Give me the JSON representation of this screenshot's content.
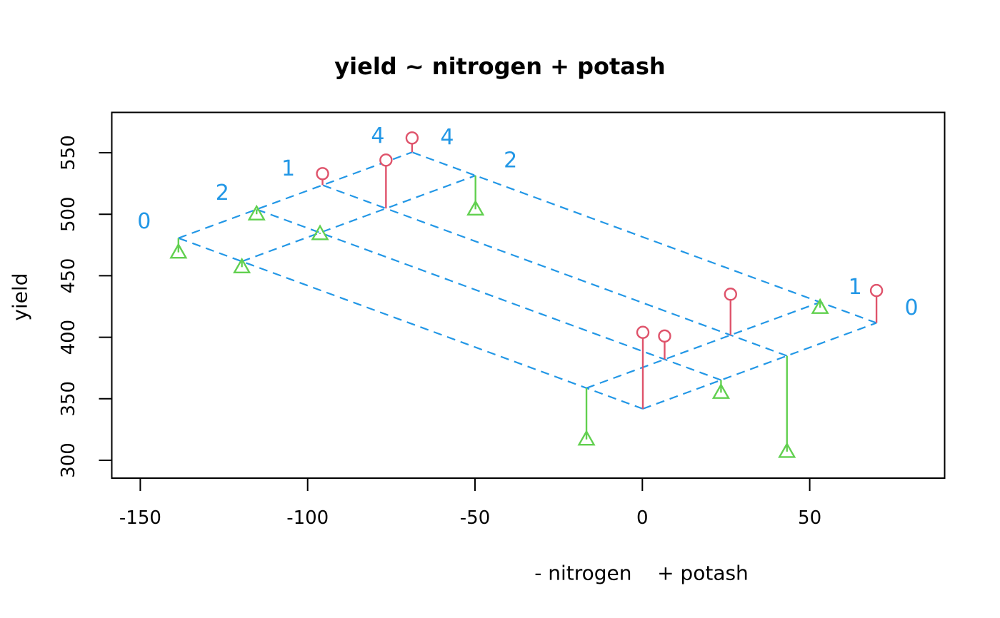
{
  "title": "yield ~ nitrogen + potash",
  "axes": {
    "x": {
      "label": "- nitrogen    + potash",
      "ticks": [
        -150,
        -100,
        -50,
        0,
        50
      ]
    },
    "y": {
      "label": "yield",
      "ticks": [
        300,
        350,
        400,
        450,
        500,
        550
      ]
    }
  },
  "colors": {
    "lattice_blue": "#2297E6",
    "positive_red": "#DF536B",
    "negative_green": "#61D04F",
    "foreground": "#000000",
    "background": "#FFFFFF"
  },
  "chart_data": {
    "type": "scatter",
    "subtype": "tukey-twoway-additive-fit",
    "title": "yield ~ nitrogen + potash",
    "xlabel": "- nitrogen    + potash",
    "ylabel": "yield",
    "xlim": [
      -158,
      90
    ],
    "ylim": [
      285,
      583
    ],
    "grid": "dashed-lattice",
    "legend": "none",
    "model": {
      "mu": 341.7,
      "row_factor": "nitrogen",
      "col_factor": "potash",
      "nitrogen_levels": [
        "0",
        "1",
        "2",
        "4"
      ],
      "potash_levels": [
        "0",
        "1",
        "2",
        "4"
      ],
      "nitrogen_effects": {
        "0": 0,
        "1": 16.85,
        "2": 119.8,
        "4": 138.75
      },
      "potash_effects": {
        "0": 0.15,
        "1": 43.2,
        "2": 23.5,
        "4": 69.95
      }
    },
    "cells": [
      {
        "nitrogen": "0",
        "potash": "0",
        "x": 0.15,
        "fitted": 341.85,
        "observed": 404
      },
      {
        "nitrogen": "0",
        "potash": "1",
        "x": 43.2,
        "fitted": 384.9,
        "observed": 307
      },
      {
        "nitrogen": "0",
        "potash": "2",
        "x": 23.5,
        "fitted": 365.2,
        "observed": 355
      },
      {
        "nitrogen": "0",
        "potash": "4",
        "x": 69.95,
        "fitted": 411.65,
        "observed": 438
      },
      {
        "nitrogen": "1",
        "potash": "0",
        "x": -16.7,
        "fitted": 358.7,
        "observed": 317
      },
      {
        "nitrogen": "1",
        "potash": "1",
        "x": 26.35,
        "fitted": 401.75,
        "observed": 435
      },
      {
        "nitrogen": "1",
        "potash": "2",
        "x": 6.65,
        "fitted": 382.05,
        "observed": 401
      },
      {
        "nitrogen": "1",
        "potash": "4",
        "x": 53.1,
        "fitted": 428.5,
        "observed": 424
      },
      {
        "nitrogen": "2",
        "potash": "0",
        "x": -119.65,
        "fitted": 461.65,
        "observed": 457
      },
      {
        "nitrogen": "2",
        "potash": "1",
        "x": -76.6,
        "fitted": 504.7,
        "observed": 544
      },
      {
        "nitrogen": "2",
        "potash": "2",
        "x": -96.3,
        "fitted": 485.0,
        "observed": 484
      },
      {
        "nitrogen": "2",
        "potash": "4",
        "x": -49.85,
        "fitted": 531.45,
        "observed": 504
      },
      {
        "nitrogen": "4",
        "potash": "0",
        "x": -138.6,
        "fitted": 480.6,
        "observed": 469
      },
      {
        "nitrogen": "4",
        "potash": "1",
        "x": -95.55,
        "fitted": 523.65,
        "observed": 533
      },
      {
        "nitrogen": "4",
        "potash": "2",
        "x": -115.25,
        "fitted": 503.95,
        "observed": 500
      },
      {
        "nitrogen": "4",
        "potash": "4",
        "x": -68.8,
        "fitted": 550.4,
        "observed": 562
      }
    ],
    "line_labels": {
      "potash_edge": [
        "0",
        "2",
        "1",
        "4"
      ],
      "nitrogen_edge": [
        "4",
        "2",
        "1",
        "0"
      ]
    }
  }
}
